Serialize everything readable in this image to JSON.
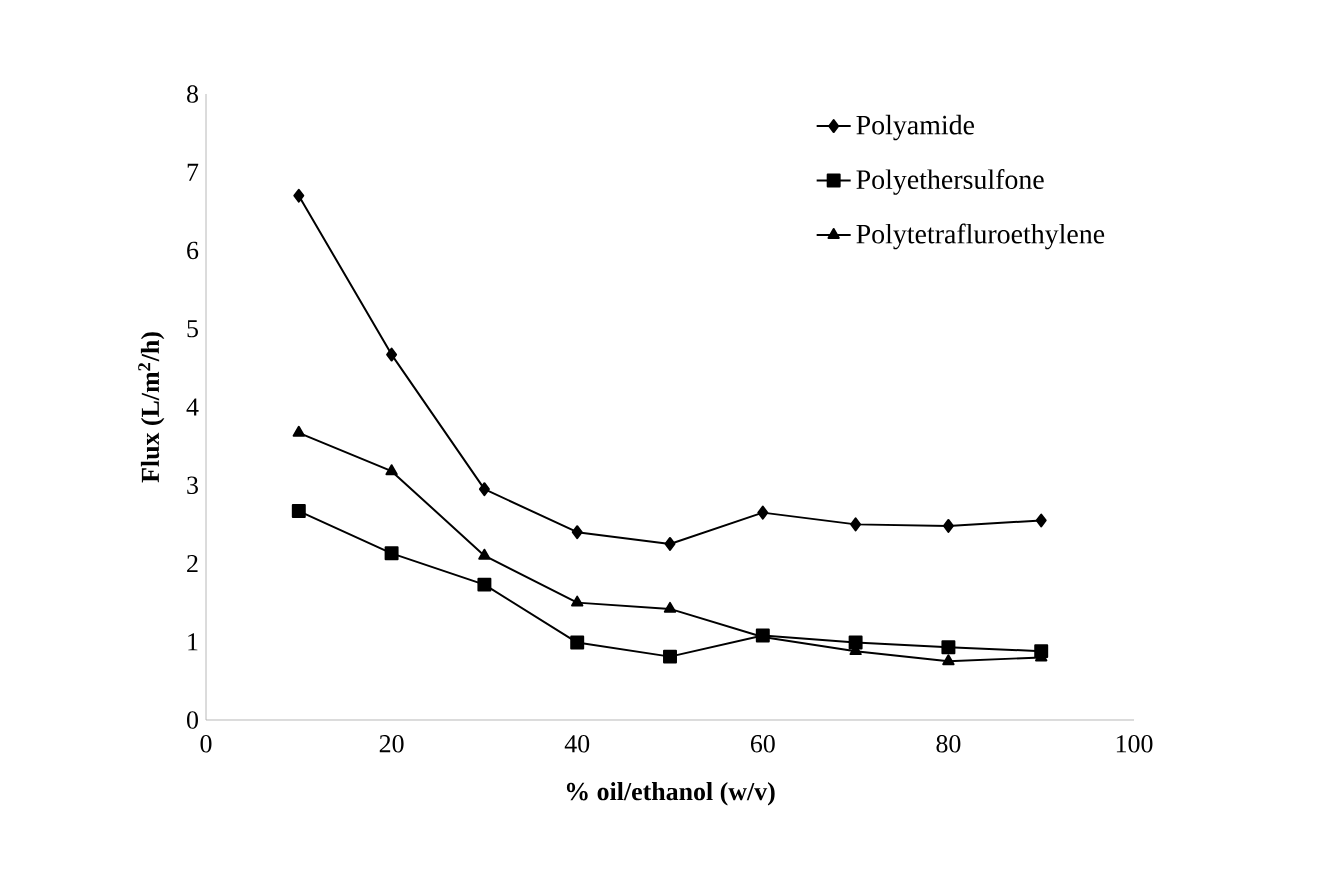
{
  "chart_data": {
    "type": "line",
    "xlabel": "% oil/ethanol (w/v)",
    "ylabel": "Flux (L/m$^{2}$/h)",
    "x": [
      10,
      20,
      30,
      40,
      50,
      60,
      70,
      80,
      90
    ],
    "series": [
      {
        "name": "Polyamide",
        "color": "#000000",
        "marker": "diamond",
        "values": [
          6.7,
          4.67,
          2.95,
          2.4,
          2.25,
          2.65,
          2.5,
          2.48,
          2.55
        ]
      },
      {
        "name": "Polyethersulfone",
        "color": "#000000",
        "marker": "square",
        "values": [
          2.67,
          2.13,
          1.73,
          0.99,
          0.81,
          1.08,
          0.99,
          0.93,
          0.88
        ]
      },
      {
        "name": "Polytetrafluroethylene",
        "color": "#000000",
        "marker": "triangle",
        "values": [
          3.67,
          3.18,
          2.1,
          1.5,
          1.42,
          1.06,
          0.88,
          0.75,
          0.8
        ]
      }
    ],
    "xlim": [
      0,
      100
    ],
    "xticks": [
      0,
      20,
      40,
      60,
      80,
      100
    ],
    "ylim": [
      0,
      8
    ],
    "yticks": [
      0,
      1,
      2,
      3,
      4,
      5,
      6,
      7,
      8
    ],
    "grid": false,
    "legend": "top right",
    "line_style": "solid"
  }
}
